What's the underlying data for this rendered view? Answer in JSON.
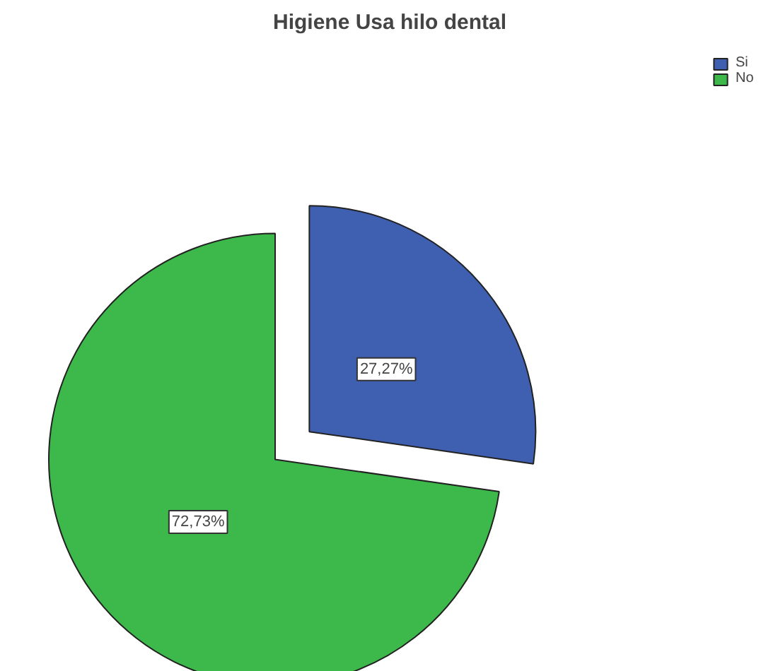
{
  "chart_data": {
    "type": "pie",
    "title": "Higiene Usa hilo dental",
    "categories": [
      "Si",
      "No"
    ],
    "values": [
      27.27,
      72.73
    ],
    "colors": [
      "#3f5fb0",
      "#3cb94a"
    ],
    "value_labels": [
      "27,27%",
      "72,73%"
    ],
    "legend": "top right"
  }
}
